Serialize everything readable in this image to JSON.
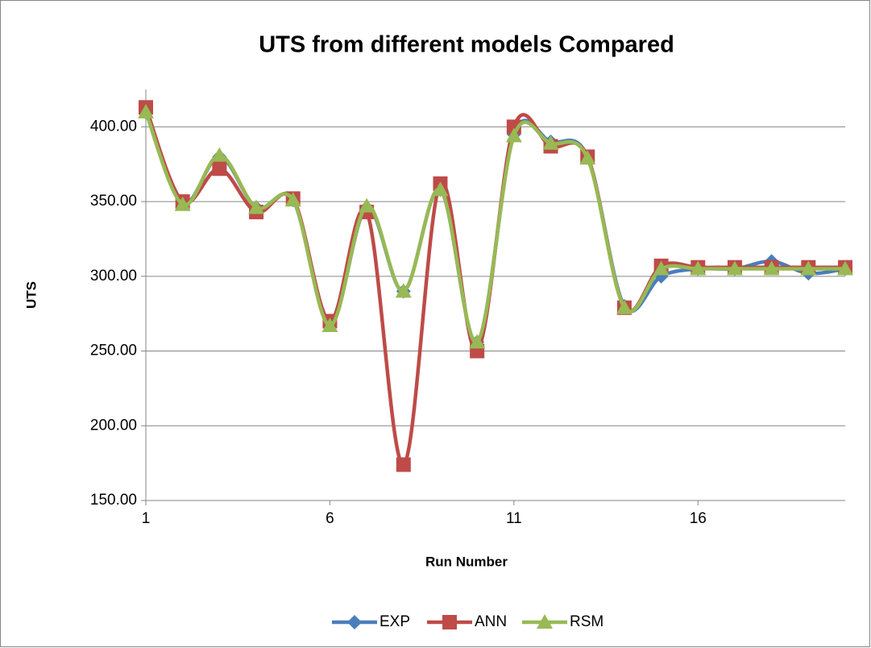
{
  "chart_data": {
    "type": "line",
    "title": "UTS from different models Compared",
    "x_label": "Run Number",
    "y_label": "UTS",
    "x": [
      1,
      2,
      3,
      4,
      5,
      6,
      7,
      8,
      9,
      10,
      11,
      12,
      13,
      14,
      15,
      16,
      17,
      18,
      19,
      20
    ],
    "xlim": [
      1,
      20
    ],
    "xticks": [
      1,
      6,
      11,
      16
    ],
    "ylim": [
      150,
      425
    ],
    "yticks": [
      {
        "value": 150,
        "label": "150.00"
      },
      {
        "value": 200,
        "label": "200.00"
      },
      {
        "value": 250,
        "label": "250.00"
      },
      {
        "value": 300,
        "label": "300.00"
      },
      {
        "value": 350,
        "label": "350.00"
      },
      {
        "value": 400,
        "label": "400.00"
      }
    ],
    "grid": true,
    "smooth": true,
    "legend": "bottom",
    "series": [
      {
        "name": "EXP",
        "color": "#4a7ebb",
        "marker": "diamond",
        "values": [
          410,
          349,
          380,
          346,
          351,
          268,
          346,
          290,
          358,
          256,
          395,
          390,
          380,
          280,
          300,
          305,
          305,
          310,
          302,
          305
        ]
      },
      {
        "name": "ANN",
        "color": "#be4b48",
        "marker": "square",
        "values": [
          413,
          350,
          372,
          343,
          352,
          270,
          343,
          174,
          362,
          250,
          400,
          387,
          380,
          279,
          307,
          306,
          306,
          306,
          306,
          306
        ]
      },
      {
        "name": "RSM",
        "color": "#98b954",
        "marker": "triangle",
        "values": [
          410,
          348,
          381,
          346,
          351,
          267,
          347,
          290,
          358,
          256,
          394,
          389,
          379,
          279,
          305,
          305,
          305,
          305,
          305,
          305
        ]
      }
    ]
  }
}
